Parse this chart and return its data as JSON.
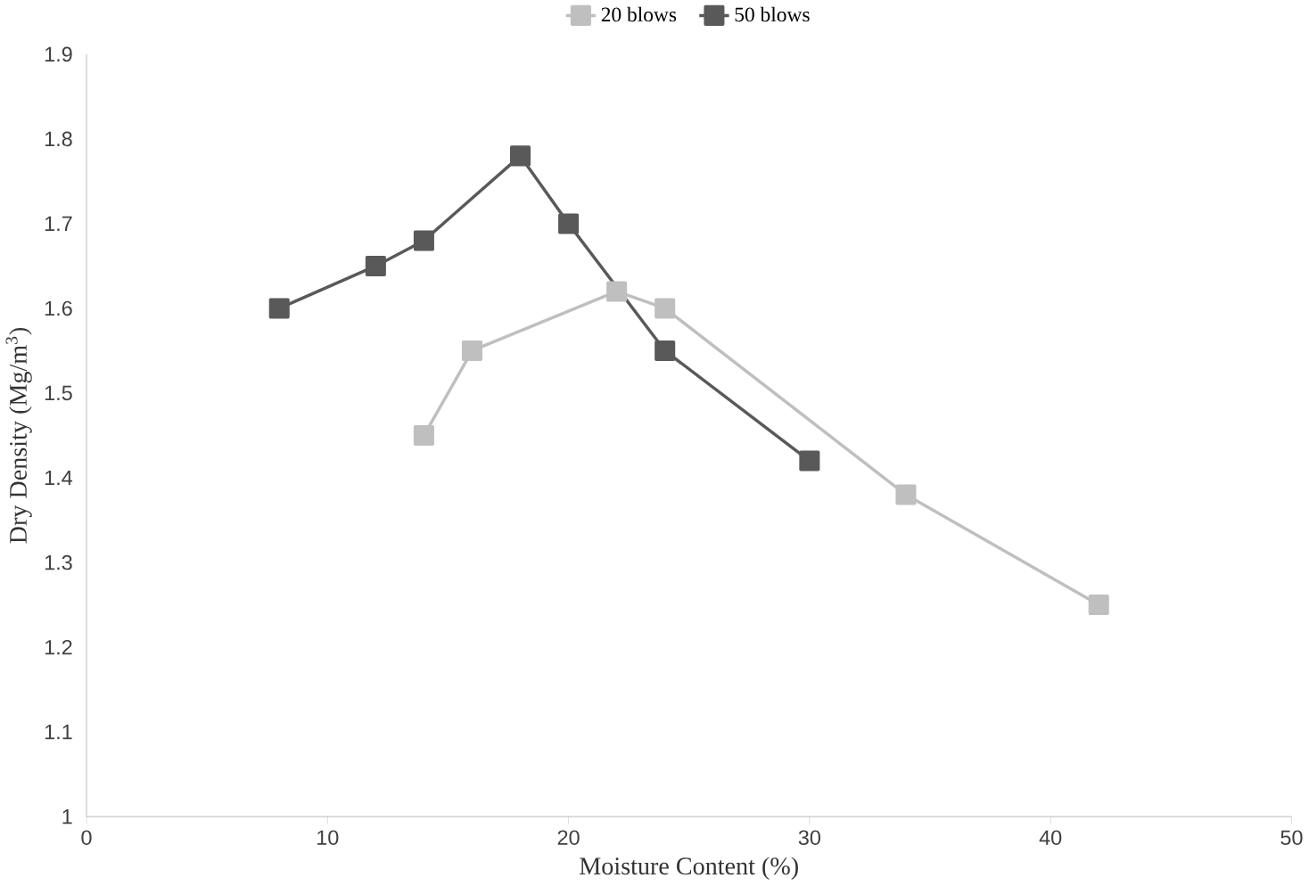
{
  "chart_data": {
    "type": "line",
    "xlabel": "Moisture Content (%)",
    "ylabel": "Dry Density (Mg/m$^{3}$)",
    "xlim": [
      0,
      50
    ],
    "xticks": [
      0,
      10,
      20,
      30,
      40,
      50
    ],
    "ylim": [
      1,
      1.9
    ],
    "yticks": [
      1,
      1.1,
      1.2,
      1.3,
      1.4,
      1.5,
      1.6,
      1.7,
      1.8,
      1.9
    ],
    "legend": "top",
    "marker": "square",
    "line_style": "solid",
    "grid": false,
    "series": [
      {
        "name": "20 blows",
        "color": "#bfbfbf",
        "x": [
          14,
          16,
          22,
          24,
          34,
          42
        ],
        "values": [
          1.45,
          1.55,
          1.62,
          1.6,
          1.38,
          1.25
        ]
      },
      {
        "name": "50 blows",
        "color": "#595959",
        "x": [
          8,
          12,
          14,
          18,
          20,
          24,
          30
        ],
        "values": [
          1.6,
          1.65,
          1.68,
          1.78,
          1.7,
          1.55,
          1.42
        ]
      }
    ]
  }
}
